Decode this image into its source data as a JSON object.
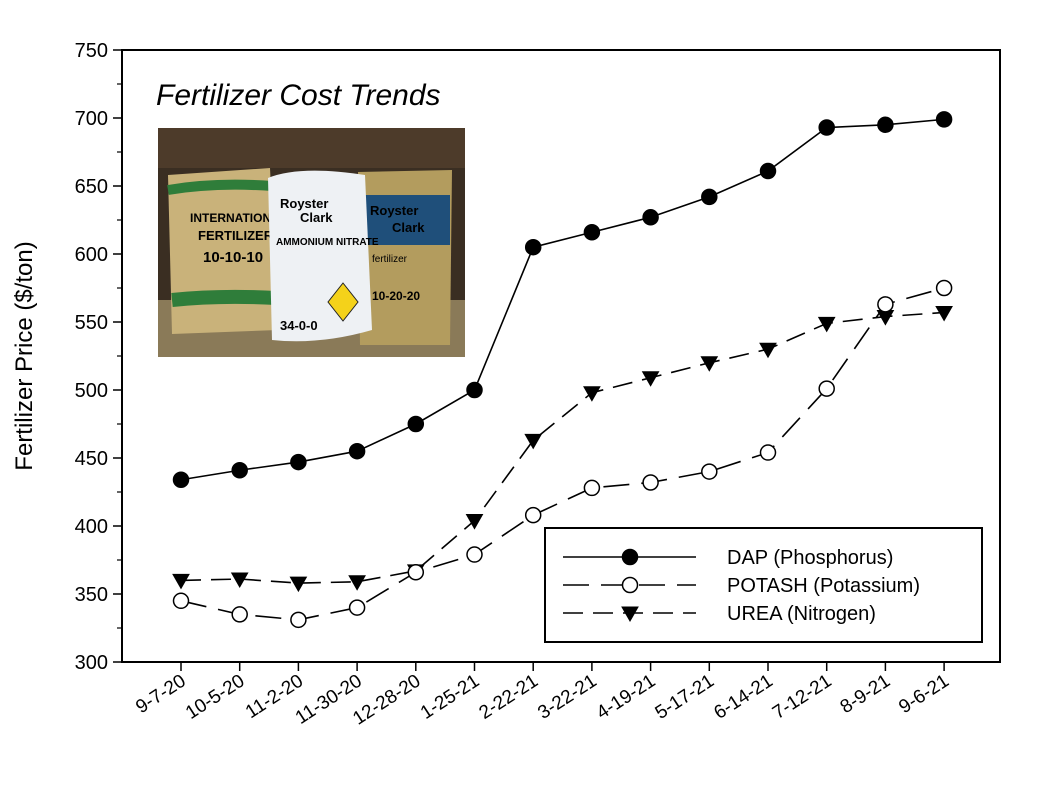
{
  "chart_data": {
    "type": "line",
    "title": "Fertilizer Cost Trends",
    "ylabel": "Fertilizer Price ($/ton)",
    "xlabel": "",
    "ylim": [
      300,
      750
    ],
    "yticks": [
      300,
      350,
      400,
      450,
      500,
      550,
      600,
      650,
      700,
      750
    ],
    "categories": [
      "9-7-20",
      "10-5-20",
      "11-2-20",
      "11-30-20",
      "12-28-20",
      "1-25-21",
      "2-22-21",
      "3-22-21",
      "4-19-21",
      "5-17-21",
      "6-14-21",
      "7-12-21",
      "8-9-21",
      "9-6-21"
    ],
    "legend_position": "bottom-right",
    "grid": false,
    "series": [
      {
        "name": "DAP (Phosphorus)",
        "marker": "filled-circle",
        "line": "solid",
        "values": [
          434,
          441,
          447,
          455,
          475,
          500,
          605,
          616,
          627,
          642,
          661,
          693,
          695,
          699
        ]
      },
      {
        "name": "POTASH (Potassium)",
        "marker": "open-circle",
        "line": "long-dash",
        "values": [
          345,
          335,
          331,
          340,
          366,
          379,
          408,
          428,
          432,
          440,
          454,
          501,
          563,
          575
        ]
      },
      {
        "name": "UREA (Nitrogen)",
        "marker": "filled-triangle-down",
        "line": "dash",
        "values": [
          360,
          361,
          358,
          359,
          367,
          404,
          463,
          498,
          509,
          520,
          530,
          549,
          554,
          557
        ]
      }
    ]
  },
  "photo": {
    "bag_left_text": [
      "INTERNATIONAL",
      "FERTILIZER",
      "10-10-10"
    ],
    "bag_middle_text": [
      "Royster",
      "Clark",
      "AMMONIUM NITRATE",
      "34-0-0"
    ],
    "bag_right_text": [
      "Royster",
      "Clark",
      "fertilizer",
      "10-20-20"
    ]
  }
}
